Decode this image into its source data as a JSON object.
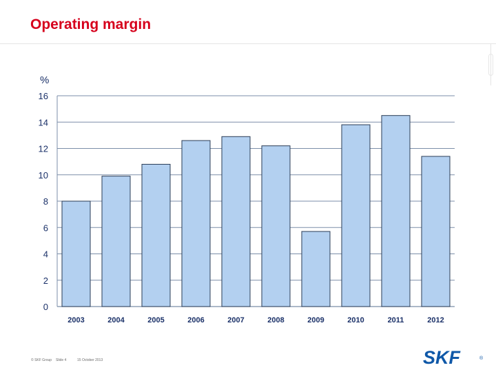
{
  "slide": {
    "title": "Operating margin"
  },
  "footer": {
    "company": "© SKF Group",
    "slide_label": "Slide 4",
    "date": "15 October 2013"
  },
  "logo": {
    "text": "SKF",
    "reg": "®"
  },
  "colors": {
    "bar_fill": "#b3d0f0",
    "bar_stroke": "#2a3b55",
    "grid": "#7b8ea8",
    "axis_text": "#1a3068",
    "title": "#d6001c",
    "logo": "#0f58a8"
  },
  "chart_data": {
    "type": "bar",
    "title": "",
    "xlabel": "",
    "ylabel": "%",
    "categories": [
      "2003",
      "2004",
      "2005",
      "2006",
      "2007",
      "2008",
      "2009",
      "2010",
      "2011",
      "2012"
    ],
    "values": [
      8.0,
      9.9,
      10.8,
      12.6,
      12.9,
      12.2,
      5.7,
      13.8,
      14.5,
      11.4
    ],
    "ylim": [
      0,
      16
    ],
    "yticks": [
      "0",
      "2",
      "4",
      "6",
      "8",
      "10",
      "12",
      "14",
      "16"
    ],
    "grid": true,
    "legend": "none"
  }
}
